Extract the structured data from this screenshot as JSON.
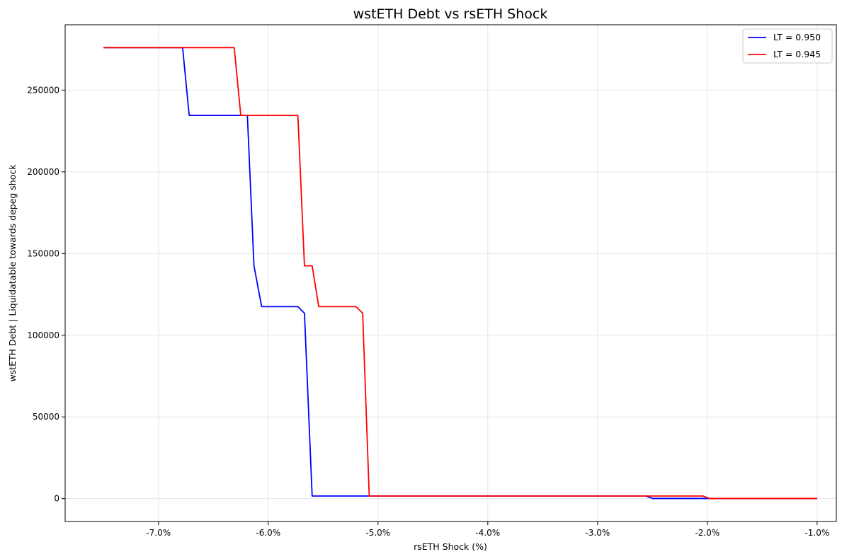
{
  "chart_data": {
    "type": "line",
    "title": "wstETH Debt vs rsETH Shock",
    "xlabel": "rsETH Shock (%)",
    "ylabel": "wstETH Debt | Liquidatable towards depeg shock",
    "xlim": [
      -7.85,
      -0.825
    ],
    "ylim": [
      -14000,
      290000
    ],
    "x_ticks": [
      -7.0,
      -6.0,
      -5.0,
      -4.0,
      -3.0,
      -2.0,
      -1.0
    ],
    "x_tick_labels": [
      "-7.0%",
      "-6.0%",
      "-5.0%",
      "-4.0%",
      "-3.0%",
      "-2.0%",
      "-1.0%"
    ],
    "y_ticks": [
      0,
      50000,
      100000,
      150000,
      200000,
      250000
    ],
    "y_tick_labels": [
      "0",
      "50000",
      "100000",
      "150000",
      "200000",
      "250000"
    ],
    "grid": true,
    "legend_position": "top-right",
    "series": [
      {
        "name": "LT = 0.950",
        "color": "#0000ff",
        "points": [
          [
            -7.5,
            276000
          ],
          [
            -6.78,
            276000
          ],
          [
            -6.72,
            234500
          ],
          [
            -6.19,
            234500
          ],
          [
            -6.13,
            142500
          ],
          [
            -6.06,
            117500
          ],
          [
            -5.73,
            117500
          ],
          [
            -5.67,
            113500
          ],
          [
            -5.6,
            1600
          ],
          [
            -2.56,
            1600
          ],
          [
            -2.5,
            100
          ],
          [
            -1.0,
            100
          ]
        ]
      },
      {
        "name": "LT = 0.945",
        "color": "#ff0000",
        "points": [
          [
            -7.5,
            276000
          ],
          [
            -6.31,
            276000
          ],
          [
            -6.25,
            234500
          ],
          [
            -5.73,
            234500
          ],
          [
            -5.67,
            142500
          ],
          [
            -5.6,
            142500
          ],
          [
            -5.54,
            117500
          ],
          [
            -5.2,
            117500
          ],
          [
            -5.14,
            113500
          ],
          [
            -5.08,
            1600
          ],
          [
            -2.04,
            1600
          ],
          [
            -1.98,
            100
          ],
          [
            -1.0,
            100
          ]
        ]
      }
    ]
  }
}
